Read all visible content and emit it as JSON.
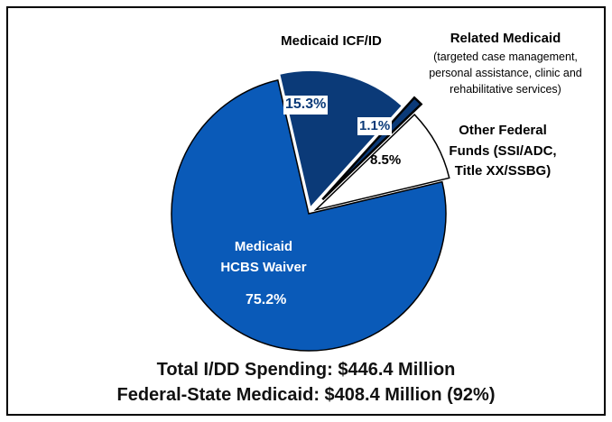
{
  "chart_data": {
    "type": "pie",
    "title": "Total I/DD Spending: $446.4 Million",
    "subtitle": "Federal-State Medicaid: $408.4 Million (92%)",
    "categories": [
      "Medicaid ICF/ID",
      "Related Medicaid",
      "Other Federal Funds (SSI/ADC, Title XX/SSBG)",
      "Medicaid HCBS Waiver"
    ],
    "values": [
      15.3,
      1.1,
      8.5,
      75.2
    ],
    "value_labels": [
      "15.3%",
      "1.1%",
      "8.5%",
      "75.2%"
    ],
    "colors": [
      "#0b3a78",
      "#0b3a78",
      "#ffffff",
      "#0a5ab8"
    ],
    "annotations": [
      "(targeted case management, personal assistance, clinic and rehabilitative services)"
    ]
  }
}
